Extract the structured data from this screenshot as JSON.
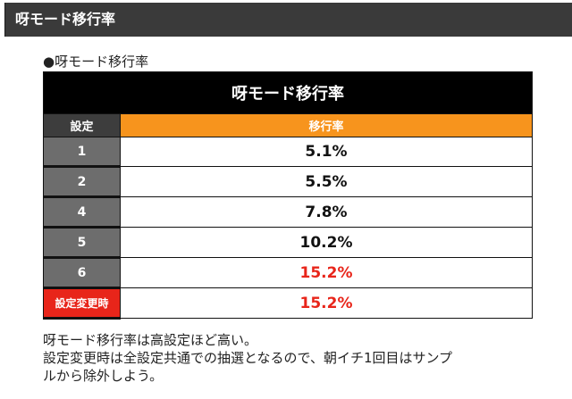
{
  "header": {
    "title": "呀モード移行率"
  },
  "caption": "●呀モード移行率",
  "table": {
    "title": "呀モード移行率",
    "columns": [
      "設定",
      "移行率"
    ],
    "rows": [
      {
        "setting": "1",
        "rate": "5.1%",
        "highlight": false
      },
      {
        "setting": "2",
        "rate": "5.5%",
        "highlight": false
      },
      {
        "setting": "4",
        "rate": "7.8%",
        "highlight": false
      },
      {
        "setting": "5",
        "rate": "10.2%",
        "highlight": false
      },
      {
        "setting": "6",
        "rate": "15.2%",
        "highlight": true
      },
      {
        "setting": "設定変更時",
        "rate": "15.2%",
        "highlight": true
      }
    ]
  },
  "notes": [
    "呀モード移行率は高設定ほど高い。",
    "設定変更時は全設定共通での抽選となるので、朝イチ1回目はサンプ",
    "ルから除外しよう。"
  ],
  "colors": {
    "header_bg": "#3a3a3a",
    "table_title_bg": "#000000",
    "setting_cell_bg": "#6d6d6d",
    "rate_header_bg": "#f7941d",
    "highlight_red": "#e8251a"
  }
}
